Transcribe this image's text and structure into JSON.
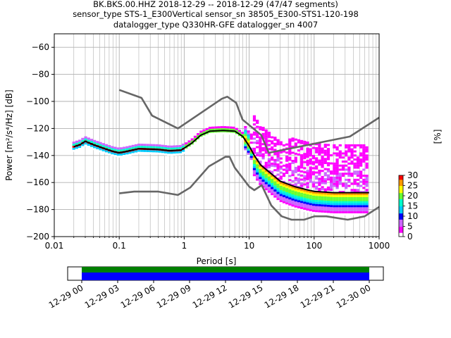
{
  "chart_data": {
    "type": "heatmap",
    "title_lines": [
      "BK.BKS.00.HHZ   2018-12-29 -- 2018-12-29  (47/47 segments)",
      "sensor_type STS-1_E300Vertical sensor_sn 38505_E300-STS1-120-198",
      "datalogger_type Q330HR-GFE datalogger_sn 4007"
    ],
    "xlabel": "Period [s]",
    "ylabel": "Power [m²/s⁴/Hz] [dB]",
    "xscale": "log",
    "xlim": [
      0.01,
      1000
    ],
    "ylim": [
      -200,
      -50
    ],
    "grid": true,
    "xtick_values": [
      0.01,
      0.1,
      1,
      10,
      100,
      1000
    ],
    "xtick_labels": [
      "0.01",
      "0.1",
      "1",
      "10",
      "100",
      "1000"
    ],
    "ytick_values": [
      -200,
      -180,
      -160,
      -140,
      -120,
      -100,
      -80,
      -60
    ],
    "ytick_labels": [
      "−200",
      "−180",
      "−160",
      "−140",
      "−120",
      "−100",
      "−80",
      "−60"
    ],
    "colorbar": {
      "label": "[%]",
      "range": [
        0,
        30
      ],
      "tick_values": [
        0,
        5,
        10,
        15,
        20,
        25,
        30
      ],
      "tick_labels": [
        "0",
        "5",
        "10",
        "15",
        "20",
        "25",
        "30"
      ]
    },
    "series": [
      {
        "role": "noise-model-high",
        "color": "#666666",
        "points": [
          [
            0.1,
            -91.5
          ],
          [
            0.22,
            -97.4
          ],
          [
            0.32,
            -110.5
          ],
          [
            0.8,
            -120
          ],
          [
            3.8,
            -98
          ],
          [
            4.6,
            -96.5
          ],
          [
            6.3,
            -101
          ],
          [
            7.9,
            -113.5
          ],
          [
            15.4,
            -125
          ],
          [
            20,
            -138
          ],
          [
            354.8,
            -126
          ],
          [
            1000,
            -112
          ]
        ]
      },
      {
        "role": "noise-model-low",
        "color": "#666666",
        "points": [
          [
            0.1,
            -168
          ],
          [
            0.17,
            -166.7
          ],
          [
            0.4,
            -166.7
          ],
          [
            0.8,
            -169.2
          ],
          [
            1.24,
            -163.7
          ],
          [
            2.4,
            -148
          ],
          [
            4.3,
            -141
          ],
          [
            5,
            -141
          ],
          [
            6,
            -149
          ],
          [
            10,
            -163
          ],
          [
            12,
            -165.6
          ],
          [
            15.6,
            -162
          ],
          [
            21.9,
            -177
          ],
          [
            31.6,
            -185
          ],
          [
            45,
            -187.5
          ],
          [
            70,
            -187.5
          ],
          [
            101,
            -185
          ],
          [
            154,
            -185
          ],
          [
            328,
            -187.5
          ],
          [
            600,
            -185
          ],
          [
            1000,
            -178
          ]
        ]
      },
      {
        "role": "mean",
        "color": "#000000",
        "points": [
          [
            0.02,
            -133.5
          ],
          [
            0.025,
            -132
          ],
          [
            0.03,
            -129.5
          ],
          [
            0.04,
            -132
          ],
          [
            0.06,
            -135
          ],
          [
            0.08,
            -137
          ],
          [
            0.1,
            -138
          ],
          [
            0.13,
            -137
          ],
          [
            0.2,
            -135
          ],
          [
            0.4,
            -135.5
          ],
          [
            0.6,
            -136.5
          ],
          [
            0.9,
            -136
          ],
          [
            1.3,
            -131
          ],
          [
            1.8,
            -125
          ],
          [
            2.5,
            -122
          ],
          [
            4,
            -121.5
          ],
          [
            6,
            -122
          ],
          [
            8,
            -126
          ],
          [
            10,
            -133
          ],
          [
            12,
            -140
          ],
          [
            15,
            -147
          ],
          [
            20,
            -152
          ],
          [
            30,
            -159
          ],
          [
            50,
            -163
          ],
          [
            80,
            -165.5
          ],
          [
            100,
            -166.5
          ],
          [
            200,
            -167.5
          ],
          [
            400,
            -167.5
          ],
          [
            700,
            -167.5
          ]
        ]
      }
    ],
    "time_axis": {
      "tick_labels": [
        "12-29 00",
        "12-29 03",
        "12-29 06",
        "12-29 09",
        "12-29 12",
        "12-29 15",
        "12-29 18",
        "12-29 21",
        "12-30 00"
      ],
      "coverage_colors": [
        "#008000",
        "#0000ff"
      ]
    },
    "colormap": [
      "#ffffff",
      "#ff00ff",
      "#cc66ff",
      "#0000ff",
      "#00ccff",
      "#00ffcc",
      "#66ff33",
      "#ffff00",
      "#ff9900",
      "#ff0000"
    ]
  }
}
